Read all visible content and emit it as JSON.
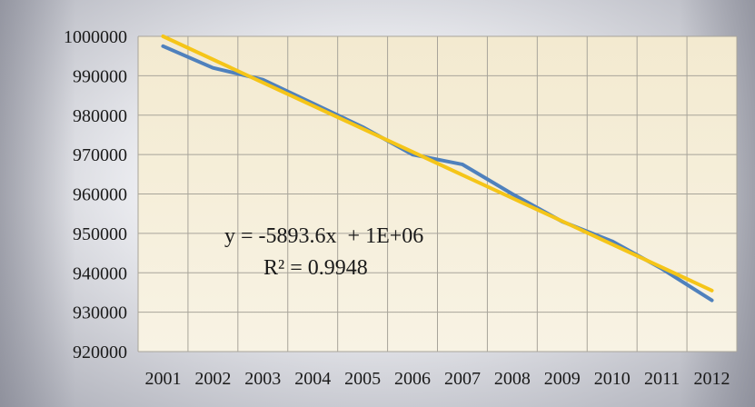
{
  "chart_data": {
    "type": "line",
    "title": "",
    "xlabel": "",
    "ylabel": "",
    "categories": [
      "2001",
      "2002",
      "2003",
      "2004",
      "2005",
      "2006",
      "2007",
      "2008",
      "2009",
      "2010",
      "2011",
      "2012"
    ],
    "ylim": [
      920000,
      1000000
    ],
    "yticks": [
      "1000000",
      "990000",
      "980000",
      "970000",
      "960000",
      "950000",
      "940000",
      "930000",
      "920000"
    ],
    "grid": true,
    "legend": "none",
    "series": [
      {
        "values": [
          997500,
          992000,
          989000,
          983000,
          977000,
          970000,
          967500,
          960000,
          953000,
          948000,
          941000,
          933000
        ],
        "color": "#4f81bd"
      }
    ],
    "trendline": {
      "type": "linear",
      "color": "#f5c518",
      "start": 1000000,
      "end": 935500
    },
    "annotations": {
      "equation": "y = -5893.6x  + 1E+06",
      "r_squared": "R² = 0.9948"
    },
    "colors": {
      "plot_area": "#f6efd9",
      "grid": "#a8a49a"
    }
  }
}
